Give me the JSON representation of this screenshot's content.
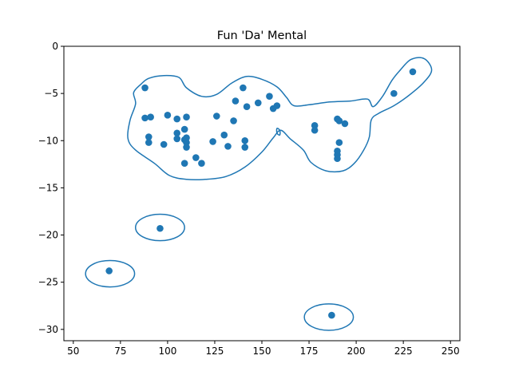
{
  "chart_data": {
    "type": "scatter",
    "title": "Fun 'Da' Mental",
    "xlabel": "",
    "ylabel": "",
    "xlim": [
      45,
      255
    ],
    "ylim": [
      -31.2,
      0
    ],
    "x_ticks": [
      50,
      75,
      100,
      125,
      150,
      175,
      200,
      225,
      250
    ],
    "y_ticks": [
      0,
      -5,
      -10,
      -15,
      -20,
      -25,
      -30
    ],
    "grid": false,
    "colors": {
      "series": "#1f77b4",
      "axes": "#000000"
    },
    "series": [
      {
        "points": [
          [
            88,
            -4.4
          ],
          [
            88,
            -7.6
          ],
          [
            91,
            -7.5
          ],
          [
            90,
            -9.6
          ],
          [
            90,
            -10.2
          ],
          [
            98,
            -10.4
          ],
          [
            100,
            -7.3
          ],
          [
            105,
            -7.7
          ],
          [
            105,
            -9.2
          ],
          [
            105,
            -9.8
          ],
          [
            109,
            -8.8
          ],
          [
            110,
            -7.5
          ],
          [
            109,
            -9.9
          ],
          [
            110,
            -9.7
          ],
          [
            110,
            -10.2
          ],
          [
            110,
            -10.7
          ],
          [
            109,
            -12.4
          ],
          [
            115,
            -11.8
          ],
          [
            118,
            -12.4
          ],
          [
            124,
            -10.1
          ],
          [
            126,
            -7.4
          ],
          [
            130,
            -9.4
          ],
          [
            132,
            -10.6
          ],
          [
            135,
            -7.9
          ],
          [
            136,
            -5.8
          ],
          [
            140,
            -4.4
          ],
          [
            142,
            -6.4
          ],
          [
            141,
            -10.0
          ],
          [
            141,
            -10.7
          ],
          [
            148,
            -6.0
          ],
          [
            154,
            -5.3
          ],
          [
            156,
            -6.6
          ],
          [
            158,
            -6.3
          ],
          [
            178,
            -8.4
          ],
          [
            178,
            -8.9
          ],
          [
            190,
            -7.7
          ],
          [
            191,
            -7.9
          ],
          [
            194,
            -8.2
          ],
          [
            191,
            -10.2
          ],
          [
            190,
            -11.1
          ],
          [
            190,
            -11.5
          ],
          [
            190,
            -11.9
          ],
          [
            220,
            -5.0
          ],
          [
            230,
            -2.7
          ],
          [
            96,
            -19.3
          ],
          [
            69,
            -23.8
          ],
          [
            187,
            -28.5
          ]
        ]
      }
    ],
    "contours": [
      {
        "name": "main-region",
        "points": [
          [
            86,
            -4.0
          ],
          [
            90,
            -3.4
          ],
          [
            98,
            -3.1
          ],
          [
            106,
            -3.3
          ],
          [
            110,
            -4.4
          ],
          [
            118,
            -5.3
          ],
          [
            126,
            -5.1
          ],
          [
            134,
            -3.9
          ],
          [
            142,
            -3.2
          ],
          [
            150,
            -3.5
          ],
          [
            158,
            -4.3
          ],
          [
            163,
            -5.4
          ],
          [
            167,
            -6.3
          ],
          [
            175,
            -6.2
          ],
          [
            186,
            -5.9
          ],
          [
            197,
            -5.8
          ],
          [
            206,
            -5.6
          ],
          [
            209,
            -6.4
          ],
          [
            214,
            -5.3
          ],
          [
            219,
            -3.6
          ],
          [
            223,
            -2.6
          ],
          [
            229,
            -1.4
          ],
          [
            236,
            -1.3
          ],
          [
            240,
            -2.5
          ],
          [
            236,
            -3.8
          ],
          [
            228,
            -5.2
          ],
          [
            220,
            -6.3
          ],
          [
            212,
            -7.1
          ],
          [
            208,
            -7.8
          ],
          [
            207,
            -9.6
          ],
          [
            204,
            -11.0
          ],
          [
            199,
            -12.4
          ],
          [
            193,
            -13.2
          ],
          [
            184,
            -13.2
          ],
          [
            176,
            -12.3
          ],
          [
            172,
            -11.0
          ],
          [
            165,
            -9.8
          ],
          [
            160,
            -8.9
          ],
          [
            156,
            -9.7
          ],
          [
            150,
            -11.2
          ],
          [
            141,
            -12.8
          ],
          [
            131,
            -13.8
          ],
          [
            120,
            -14.1
          ],
          [
            110,
            -14.1
          ],
          [
            101,
            -13.7
          ],
          [
            93,
            -12.4
          ],
          [
            83,
            -11.0
          ],
          [
            79,
            -9.8
          ],
          [
            80,
            -7.9
          ],
          [
            83,
            -6.1
          ],
          [
            82,
            -4.9
          ],
          [
            86,
            -4.0
          ]
        ]
      },
      {
        "name": "small-artifact",
        "points": [
          [
            158,
            -8.7
          ],
          [
            159.5,
            -8.9
          ],
          [
            159.5,
            -9.4
          ],
          [
            158,
            -9.2
          ],
          [
            158,
            -8.7
          ]
        ]
      },
      {
        "name": "ring-1",
        "ellipse": {
          "cx": 96,
          "cy": -19.2,
          "rx": 13,
          "ry": 1.4
        }
      },
      {
        "name": "ring-2",
        "ellipse": {
          "cx": 69.5,
          "cy": -24.1,
          "rx": 13,
          "ry": 1.4
        }
      },
      {
        "name": "ring-3",
        "ellipse": {
          "cx": 185.5,
          "cy": -28.7,
          "rx": 13,
          "ry": 1.4
        }
      }
    ]
  }
}
